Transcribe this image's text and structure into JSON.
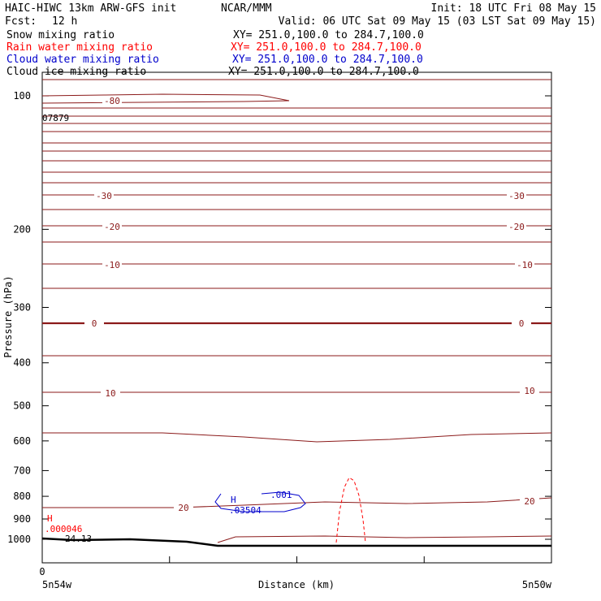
{
  "header": {
    "left_line1": "HAIC-HIWC 13km ARW-GFS init",
    "center_line1": "NCAR/MMM",
    "right_line1": "Init: 18 UTC Fri 08 May 15",
    "fcst_label": "Fcst:",
    "fcst_value": "12 h",
    "valid_line": "Valid: 06 UTC Sat 09 May 15 (03 LST Sat 09 May 15)"
  },
  "fields": [
    {
      "name": "Snow mixing ratio",
      "xy": "XY= 251.0,100.0 to 284.7,100.0",
      "color": "#000000"
    },
    {
      "name": "Rain water mixing ratio",
      "xy": "XY= 251.0,100.0 to 284.7,100.0",
      "color": "#ff0000"
    },
    {
      "name": "Cloud water mixing ratio",
      "xy": "XY= 251.0,100.0 to 284.7,100.0",
      "color": "#0000cc"
    },
    {
      "name": "Cloud ice mixing ratio",
      "xy": "XY= 251.0,100.0 to 284.7,100.0",
      "color": "#000000"
    }
  ],
  "chart_data": {
    "type": "line",
    "xlabel": "Distance (km)",
    "ylabel": "Pressure (hPa)",
    "ylim": [
      1050,
      70
    ],
    "y_scale": "log",
    "x_ticks_count": 5,
    "x_start_label": "0",
    "x_left_endpoint": "5n54w",
    "x_right_endpoint": "5n50w",
    "y_ticks": [
      100,
      200,
      300,
      400,
      500,
      600,
      700,
      800,
      900,
      1000
    ],
    "temperature_labels": [
      "-80",
      "-30",
      "-20",
      "-10",
      "0",
      "10",
      "20"
    ],
    "annotations": {
      "left_max_label": "07879",
      "cloud_water_high_symbol": "H",
      "cloud_water_high_value": ".03504",
      "cloud_water_contour_label": ".001",
      "rain_high_symbol": "H",
      "rain_high_value": ".000046",
      "surface_value": "24.13"
    },
    "colors": {
      "temperature": "#8b1a1a",
      "terrain": "#000000",
      "rain": "#ff0000",
      "cloud_water": "#0000cc"
    }
  }
}
